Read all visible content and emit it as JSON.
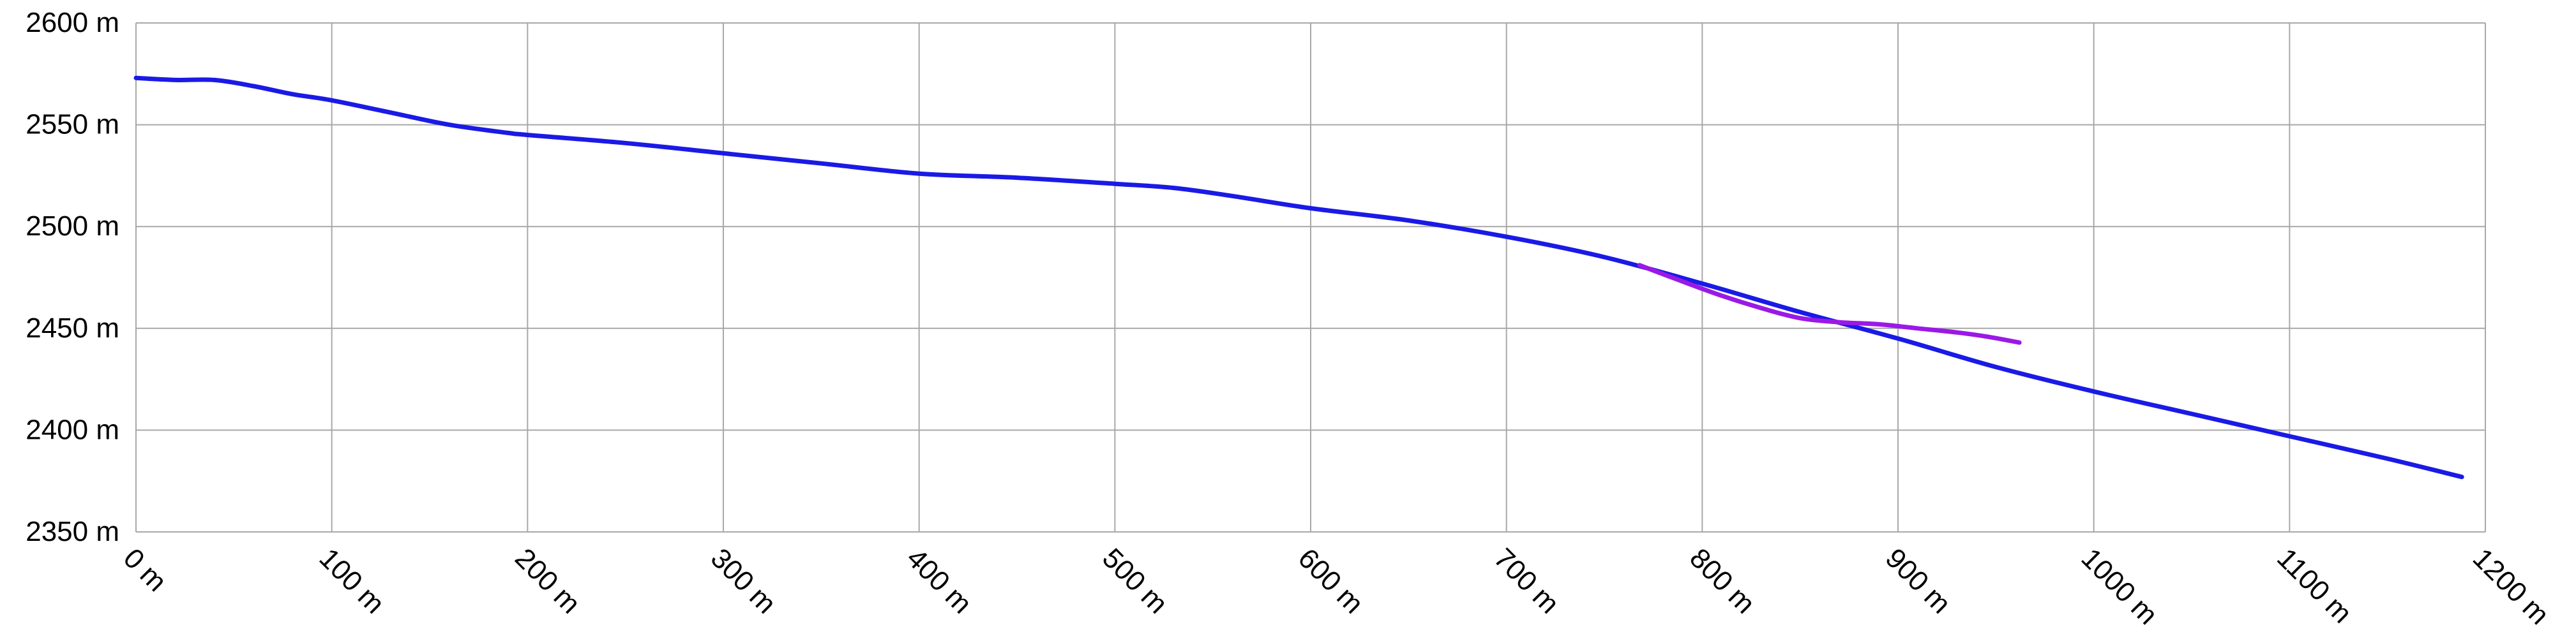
{
  "chart_data": {
    "type": "line",
    "title": "",
    "xlabel": "",
    "ylabel": "",
    "xlim": [
      0,
      1200
    ],
    "ylim": [
      2350,
      2600
    ],
    "grid": true,
    "legend": "none",
    "x_ticks": [
      {
        "value": 0,
        "label": "0 m"
      },
      {
        "value": 100,
        "label": "100 m"
      },
      {
        "value": 200,
        "label": "200 m"
      },
      {
        "value": 300,
        "label": "300 m"
      },
      {
        "value": 400,
        "label": "400 m"
      },
      {
        "value": 500,
        "label": "500 m"
      },
      {
        "value": 600,
        "label": "600 m"
      },
      {
        "value": 700,
        "label": "700 m"
      },
      {
        "value": 800,
        "label": "800 m"
      },
      {
        "value": 900,
        "label": "900 m"
      },
      {
        "value": 1000,
        "label": "1000 m"
      },
      {
        "value": 1100,
        "label": "1100 m"
      },
      {
        "value": 1200,
        "label": "1200 m"
      }
    ],
    "y_ticks": [
      {
        "value": 2600,
        "label": "2600 m"
      },
      {
        "value": 2550,
        "label": "2550 m"
      },
      {
        "value": 2500,
        "label": "2500 m"
      },
      {
        "value": 2450,
        "label": "2450 m"
      },
      {
        "value": 2400,
        "label": "2400 m"
      },
      {
        "value": 2350,
        "label": "2350 m"
      }
    ],
    "series": [
      {
        "color": "#1a1ae6",
        "points": [
          [
            0,
            2573
          ],
          [
            20,
            2572
          ],
          [
            40,
            2572
          ],
          [
            60,
            2569
          ],
          [
            80,
            2565
          ],
          [
            100,
            2562
          ],
          [
            130,
            2556
          ],
          [
            160,
            2550
          ],
          [
            190,
            2546
          ],
          [
            200,
            2545
          ],
          [
            250,
            2541
          ],
          [
            300,
            2536
          ],
          [
            350,
            2531
          ],
          [
            400,
            2526
          ],
          [
            450,
            2524
          ],
          [
            500,
            2521
          ],
          [
            530,
            2519
          ],
          [
            560,
            2515
          ],
          [
            600,
            2509
          ],
          [
            650,
            2503
          ],
          [
            700,
            2495
          ],
          [
            750,
            2485
          ],
          [
            800,
            2472
          ],
          [
            850,
            2458
          ],
          [
            900,
            2445
          ],
          [
            950,
            2431
          ],
          [
            1000,
            2419
          ],
          [
            1050,
            2408
          ],
          [
            1100,
            2397
          ],
          [
            1150,
            2386
          ],
          [
            1188,
            2377
          ]
        ]
      },
      {
        "color": "#9b19e6",
        "points": [
          [
            768,
            2481
          ],
          [
            790,
            2473
          ],
          [
            810,
            2466
          ],
          [
            830,
            2460
          ],
          [
            850,
            2455
          ],
          [
            870,
            2453
          ],
          [
            890,
            2452
          ],
          [
            910,
            2450
          ],
          [
            930,
            2448
          ],
          [
            945,
            2446
          ],
          [
            962,
            2443
          ]
        ]
      }
    ]
  }
}
